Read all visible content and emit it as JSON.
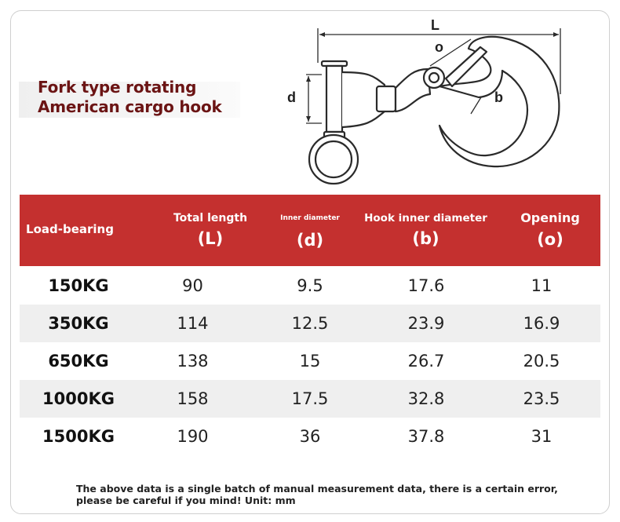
{
  "title": {
    "line1": "Fork type rotating",
    "line2": "American cargo hook"
  },
  "diagram": {
    "labels": {
      "L": "L",
      "o": "o",
      "d": "d",
      "b": "b"
    }
  },
  "table": {
    "headers": [
      {
        "line1": "Load-bearing",
        "line2": ""
      },
      {
        "line1": "Total length",
        "line2": "(L)"
      },
      {
        "line1": "Inner diameter",
        "line2": "(d)"
      },
      {
        "line1": "Hook inner diameter",
        "line2": "(b)"
      },
      {
        "line1": "Opening",
        "line2": "(o)"
      }
    ],
    "rows": [
      [
        "150KG",
        "90",
        "9.5",
        "17.6",
        "11"
      ],
      [
        "350KG",
        "114",
        "12.5",
        "23.9",
        "16.9"
      ],
      [
        "650KG",
        "138",
        "15",
        "26.7",
        "20.5"
      ],
      [
        "1000KG",
        "158",
        "17.5",
        "32.8",
        "23.5"
      ],
      [
        "1500KG",
        "190",
        "36",
        "37.8",
        "31"
      ]
    ]
  },
  "footnote": "The above data is a single batch of manual measurement data, there is a certain error, please be careful if you mind! Unit: mm",
  "colors": {
    "header_bg": "#c4302f",
    "title_text": "#6b1414",
    "alt_row_bg": "#efefef"
  }
}
